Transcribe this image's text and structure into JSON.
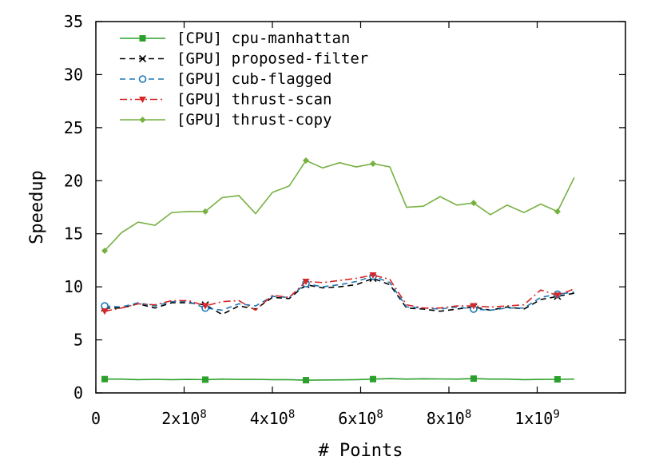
{
  "chart_data": {
    "type": "line",
    "title": "",
    "xlabel": "# Points",
    "ylabel": "Speedup",
    "xlim": [
      0,
      1200000000
    ],
    "ylim": [
      0,
      35
    ],
    "grid": false,
    "legend_position": "top-left",
    "x_ticks": [
      {
        "value": 0,
        "base": "0",
        "exp": ""
      },
      {
        "value": 200000000,
        "base": "2x10",
        "exp": "8"
      },
      {
        "value": 400000000,
        "base": "4x10",
        "exp": "8"
      },
      {
        "value": 600000000,
        "base": "6x10",
        "exp": "8"
      },
      {
        "value": 800000000,
        "base": "8x10",
        "exp": "8"
      },
      {
        "value": 1000000000,
        "base": "1x10",
        "exp": "9"
      }
    ],
    "y_ticks": [
      0,
      5,
      10,
      15,
      20,
      25,
      30,
      35
    ],
    "x": [
      20000000,
      58000000,
      96000000,
      134000000,
      172000000,
      210000000,
      248000000,
      286000000,
      324000000,
      362000000,
      400000000,
      438000000,
      476000000,
      514000000,
      552000000,
      590000000,
      628000000,
      666000000,
      704000000,
      742000000,
      780000000,
      818000000,
      856000000,
      894000000,
      932000000,
      970000000,
      1008000000,
      1046000000,
      1084000000
    ],
    "series": [
      {
        "name": "[CPU] cpu-manhattan",
        "color": "#2ca02c",
        "dash": "solid",
        "marker": "square",
        "values": [
          1.3,
          1.3,
          1.25,
          1.28,
          1.25,
          1.27,
          1.25,
          1.3,
          1.27,
          1.28,
          1.25,
          1.25,
          1.2,
          1.22,
          1.23,
          1.25,
          1.3,
          1.35,
          1.3,
          1.33,
          1.32,
          1.3,
          1.35,
          1.3,
          1.3,
          1.25,
          1.27,
          1.28,
          1.3
        ]
      },
      {
        "name": "[GPU] proposed-filter",
        "color": "#000000",
        "dash": "dashed",
        "marker": "cross",
        "values": [
          8.0,
          8.0,
          8.4,
          8.0,
          8.5,
          8.5,
          8.3,
          7.4,
          8.2,
          7.9,
          9.0,
          8.9,
          10.2,
          9.9,
          10.0,
          10.2,
          10.8,
          10.2,
          8.0,
          7.9,
          7.7,
          7.9,
          8.1,
          7.8,
          8.1,
          7.9,
          8.8,
          9.1,
          9.4
        ]
      },
      {
        "name": "[GPU] cub-flagged",
        "color": "#1f77b4",
        "dash": "dashed",
        "marker": "circle",
        "values": [
          8.2,
          8.1,
          8.5,
          8.2,
          8.6,
          8.6,
          8.0,
          7.8,
          8.4,
          8.2,
          9.1,
          9.0,
          10.3,
          10.0,
          10.2,
          10.5,
          11.0,
          10.4,
          8.1,
          8.0,
          7.9,
          8.1,
          7.9,
          7.8,
          8.0,
          8.0,
          9.0,
          9.3,
          9.5
        ]
      },
      {
        "name": "[GPU] thrust-scan",
        "color": "#d62728",
        "dash": "dashdot",
        "marker": "triangle-down",
        "values": [
          7.7,
          8.0,
          8.4,
          8.3,
          8.7,
          8.7,
          8.2,
          8.6,
          8.7,
          7.8,
          9.2,
          9.0,
          10.5,
          10.4,
          10.6,
          10.8,
          11.1,
          10.7,
          8.3,
          8.0,
          8.0,
          8.2,
          8.2,
          8.1,
          8.2,
          8.3,
          9.7,
          9.2,
          9.8
        ]
      },
      {
        "name": "[GPU] thrust-copy",
        "color": "#76b041",
        "dash": "solid",
        "marker": "diamond",
        "values": [
          13.4,
          15.1,
          16.1,
          15.8,
          17.0,
          17.1,
          17.1,
          18.4,
          18.6,
          16.9,
          18.9,
          19.5,
          21.9,
          21.2,
          21.7,
          21.3,
          21.6,
          21.3,
          17.5,
          17.6,
          18.5,
          17.7,
          17.9,
          16.8,
          17.7,
          17.0,
          17.8,
          17.1,
          20.3
        ]
      }
    ]
  }
}
